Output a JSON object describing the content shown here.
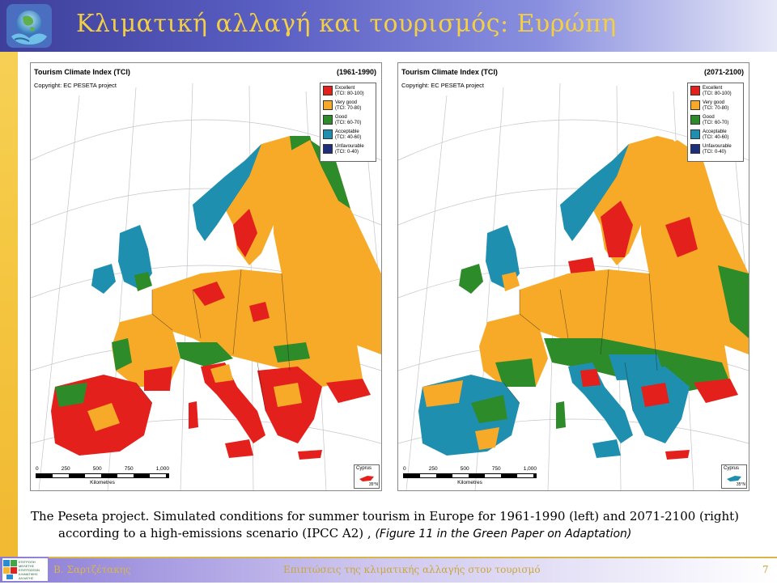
{
  "slide": {
    "title": "Κλιματική αλλαγή και τουρισμός: Ευρώπη",
    "caption_line1": "The Peseta project.  Simulated conditions for summer tourism in Europe for 1961-1990 (left) and 2071-2100 (right)",
    "caption_line2": "according to a high-emissions scenario (IPCC A2) ,",
    "caption_italic": "(Figure 11 in the Green Paper on Adaptation)",
    "footer_author": "Β. Σαρτζέτακης",
    "footer_title": "Επιπτώσεις της κλιματικής αλλαγής στον τουρισμό",
    "page_number": "7"
  },
  "logo_footer_lines": [
    "ΕΠΙΤΡΟΠΗ",
    "ΜΕΛΕΤΗΣ",
    "ΕΠΙΠΤΩΣΕΩΝ",
    "ΚΛΙΜΑΤΙΚΗΣ",
    "ΑΛΛΑΓΗΣ"
  ],
  "maps": [
    {
      "title": "Tourism Climate Index (TCI)",
      "period": "(1961-1990)",
      "copyright": "Copyright: EC PESETA project",
      "dominant_south": "excellent"
    },
    {
      "title": "Tourism Climate Index (TCI)",
      "period": "(2071-2100)",
      "copyright": "Copyright: EC PESETA project",
      "dominant_south": "acceptable"
    }
  ],
  "legend": [
    {
      "label": "Excellent",
      "range": "(TCI: 80-100)",
      "color": "#e3201c"
    },
    {
      "label": "Very good",
      "range": "(TCI: 70-80)",
      "color": "#f7a928"
    },
    {
      "label": "Good",
      "range": "(TCI: 60-70)",
      "color": "#2e8b2a"
    },
    {
      "label": "Acceptable",
      "range": "(TCI: 40-60)",
      "color": "#1f8fb0"
    },
    {
      "label": "Unfavourable",
      "range": "(TCI: 0-40)",
      "color": "#1d2f7a"
    }
  ],
  "scale": {
    "ticks": [
      "0",
      "250",
      "500",
      "750",
      "1,000"
    ],
    "unit": "Kilometres"
  },
  "inset": {
    "label": "Cyprus",
    "degree": "35°N"
  },
  "colors": {
    "header_title": "#f2cf45",
    "sea": "#ffffff",
    "grid": "#b8b8c0"
  }
}
